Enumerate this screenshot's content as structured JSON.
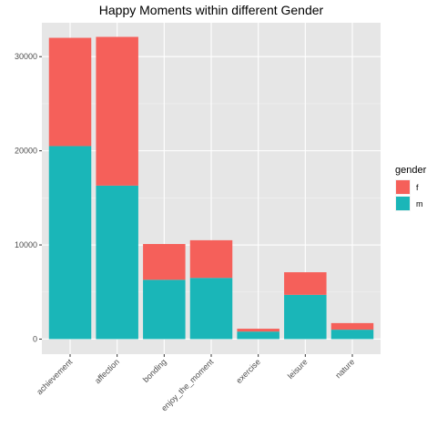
{
  "chart_data": {
    "type": "bar",
    "stacked": true,
    "title": "Happy Moments within different Gender",
    "xlabel": "",
    "ylabel": "",
    "categories": [
      "achievement",
      "affection",
      "bonding",
      "enjoy_the_moment",
      "exercise",
      "leisure",
      "nature"
    ],
    "series": [
      {
        "name": "m",
        "color": "#1ab6b8",
        "values": [
          20500,
          16300,
          6300,
          6500,
          800,
          4700,
          1000
        ]
      },
      {
        "name": "f",
        "color": "#f5605a",
        "values": [
          11500,
          15800,
          3800,
          4000,
          300,
          2400,
          700
        ]
      }
    ],
    "yticks": [
      0,
      10000,
      20000,
      30000
    ],
    "ytick_labels": [
      "0",
      "10000",
      "20000",
      "30000"
    ],
    "ylim": [
      -1600,
      33600
    ],
    "grid": true,
    "panel_bg": "#e6e6e6",
    "legend": {
      "title": "gender",
      "position": "right",
      "items": [
        {
          "label": "f",
          "color": "#f5605a"
        },
        {
          "label": "m",
          "color": "#1ab6b8"
        }
      ]
    }
  }
}
